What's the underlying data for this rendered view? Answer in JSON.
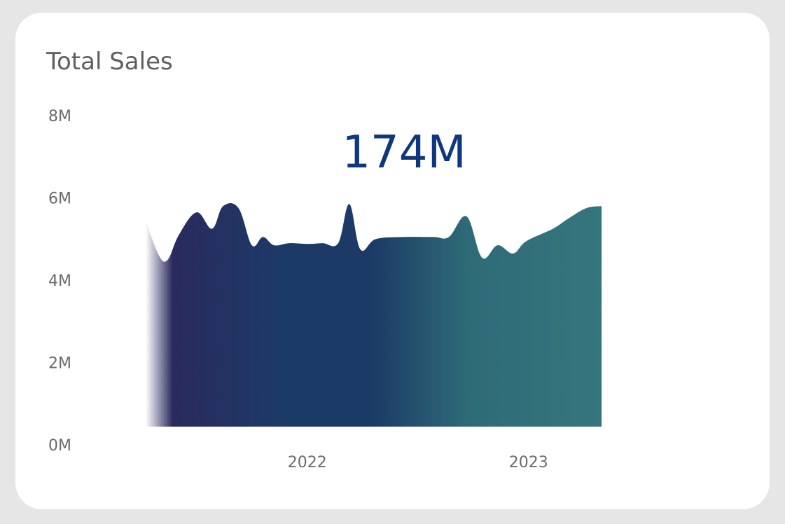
{
  "card": {
    "title": "Total Sales",
    "kpi_value": "174M"
  },
  "colors": {
    "background": "#e6e6e6",
    "card": "#ffffff",
    "title": "#5f5f5f",
    "tick_label": "#6b6b6b",
    "kpi": "#0f3780",
    "gradient_start": "#2a2a5e",
    "gradient_mid1": "#1c3a66",
    "gradient_mid2": "#2e6b78",
    "gradient_mid3": "#35767d",
    "gradient_end": "#4aae98"
  },
  "chart_data": {
    "type": "area",
    "title": "Total Sales",
    "xlabel": "",
    "ylabel": "",
    "ylim": [
      0,
      8
    ],
    "y_unit": "M",
    "yticks": [
      "0M",
      "2M",
      "4M",
      "6M",
      "8M"
    ],
    "xticks": [
      {
        "label": "2022",
        "value": 2022.0
      },
      {
        "label": "2023",
        "value": 2023.0
      }
    ],
    "xlim": [
      2021.27,
      2023.7
    ],
    "grid": false,
    "legend": "none",
    "annotation": "174M",
    "series": [
      {
        "points": [
          [
            2021.27,
            5.45
          ],
          [
            2021.33,
            4.6
          ],
          [
            2021.37,
            4.5
          ],
          [
            2021.42,
            5.1
          ],
          [
            2021.5,
            5.65
          ],
          [
            2021.57,
            5.25
          ],
          [
            2021.62,
            5.8
          ],
          [
            2021.69,
            5.75
          ],
          [
            2021.75,
            4.85
          ],
          [
            2021.8,
            5.05
          ],
          [
            2021.85,
            4.85
          ],
          [
            2021.92,
            4.9
          ],
          [
            2022.0,
            4.88
          ],
          [
            2022.07,
            4.9
          ],
          [
            2022.14,
            4.9
          ],
          [
            2022.19,
            5.85
          ],
          [
            2022.24,
            4.75
          ],
          [
            2022.31,
            5.0
          ],
          [
            2022.44,
            5.05
          ],
          [
            2022.57,
            5.05
          ],
          [
            2022.64,
            5.05
          ],
          [
            2022.72,
            5.55
          ],
          [
            2022.79,
            4.55
          ],
          [
            2022.86,
            4.85
          ],
          [
            2022.93,
            4.65
          ],
          [
            2022.99,
            4.95
          ],
          [
            2023.11,
            5.25
          ],
          [
            2023.18,
            5.5
          ],
          [
            2023.26,
            5.75
          ],
          [
            2023.33,
            5.8
          ]
        ]
      }
    ]
  }
}
